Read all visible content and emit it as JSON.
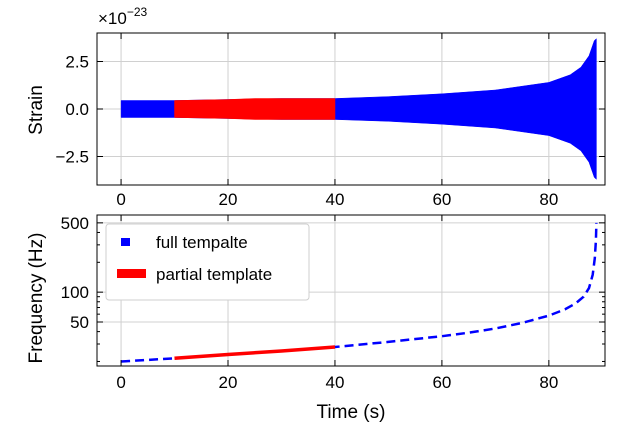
{
  "chart_data": [
    {
      "type": "area",
      "panel": "top",
      "xlabel": "",
      "ylabel": "Strain",
      "offset_text": "×10",
      "offset_exponent": "−23",
      "xlim": [
        -4.5,
        90.5
      ],
      "ylim": [
        -4.0,
        4.0
      ],
      "x_ticks": [
        0,
        20,
        40,
        60,
        80
      ],
      "x_tick_labels": [
        "0",
        "20",
        "40",
        "60",
        "80"
      ],
      "y_ticks": [
        2.5,
        0.0,
        -2.5
      ],
      "y_tick_labels": [
        "2.5",
        "0.0",
        "−2.5"
      ],
      "grid": true,
      "series": [
        {
          "color": "#0000ff",
          "envelope": [
            {
              "x": 0,
              "amp": 0.45
            },
            {
              "x": 10,
              "amp": 0.45
            },
            {
              "x": 20,
              "amp": 0.5
            },
            {
              "x": 30,
              "amp": 0.55
            },
            {
              "x": 40,
              "amp": 0.55
            },
            {
              "x": 50,
              "amp": 0.65
            },
            {
              "x": 60,
              "amp": 0.8
            },
            {
              "x": 70,
              "amp": 1.0
            },
            {
              "x": 80,
              "amp": 1.4
            },
            {
              "x": 84,
              "amp": 1.8
            },
            {
              "x": 86,
              "amp": 2.2
            },
            {
              "x": 87.5,
              "amp": 2.8
            },
            {
              "x": 88.5,
              "amp": 3.6
            },
            {
              "x": 88.9,
              "amp": 3.7
            }
          ]
        },
        {
          "color": "#ff0000",
          "envelope": [
            {
              "x": 10,
              "amp": 0.45
            },
            {
              "x": 20,
              "amp": 0.5
            },
            {
              "x": 25,
              "amp": 0.55
            },
            {
              "x": 30,
              "amp": 0.55
            },
            {
              "x": 40,
              "amp": 0.55
            }
          ]
        }
      ]
    },
    {
      "type": "line",
      "panel": "bottom",
      "xlabel": "Time (s)",
      "ylabel": "Frequency (Hz)",
      "yscale": "log",
      "xlim": [
        -4.5,
        90.5
      ],
      "ylim": [
        18,
        600
      ],
      "x_ticks": [
        0,
        20,
        40,
        60,
        80
      ],
      "x_tick_labels": [
        "0",
        "20",
        "40",
        "60",
        "80"
      ],
      "y_ticks": [
        500,
        100,
        50
      ],
      "y_tick_labels": [
        "500",
        "100",
        "50"
      ],
      "grid": true,
      "legend_position": "upper-left",
      "series": [
        {
          "name": "full tempalte",
          "color": "#0000ff",
          "style": "dashed",
          "points": [
            {
              "x": 0,
              "y": 20
            },
            {
              "x": 10,
              "y": 21.5
            },
            {
              "x": 20,
              "y": 23.5
            },
            {
              "x": 30,
              "y": 25.5
            },
            {
              "x": 40,
              "y": 28
            },
            {
              "x": 50,
              "y": 31.5
            },
            {
              "x": 60,
              "y": 36
            },
            {
              "x": 65,
              "y": 39
            },
            {
              "x": 70,
              "y": 43
            },
            {
              "x": 75,
              "y": 49
            },
            {
              "x": 80,
              "y": 58
            },
            {
              "x": 83,
              "y": 67
            },
            {
              "x": 85,
              "y": 77
            },
            {
              "x": 86.5,
              "y": 90
            },
            {
              "x": 87.5,
              "y": 110
            },
            {
              "x": 88.2,
              "y": 150
            },
            {
              "x": 88.6,
              "y": 220
            },
            {
              "x": 88.8,
              "y": 330
            },
            {
              "x": 88.9,
              "y": 500
            }
          ]
        },
        {
          "name": "partial template",
          "color": "#ff0000",
          "style": "solid",
          "points": [
            {
              "x": 10,
              "y": 21.5
            },
            {
              "x": 20,
              "y": 23.5
            },
            {
              "x": 30,
              "y": 25.5
            },
            {
              "x": 40,
              "y": 28
            }
          ]
        }
      ]
    }
  ]
}
